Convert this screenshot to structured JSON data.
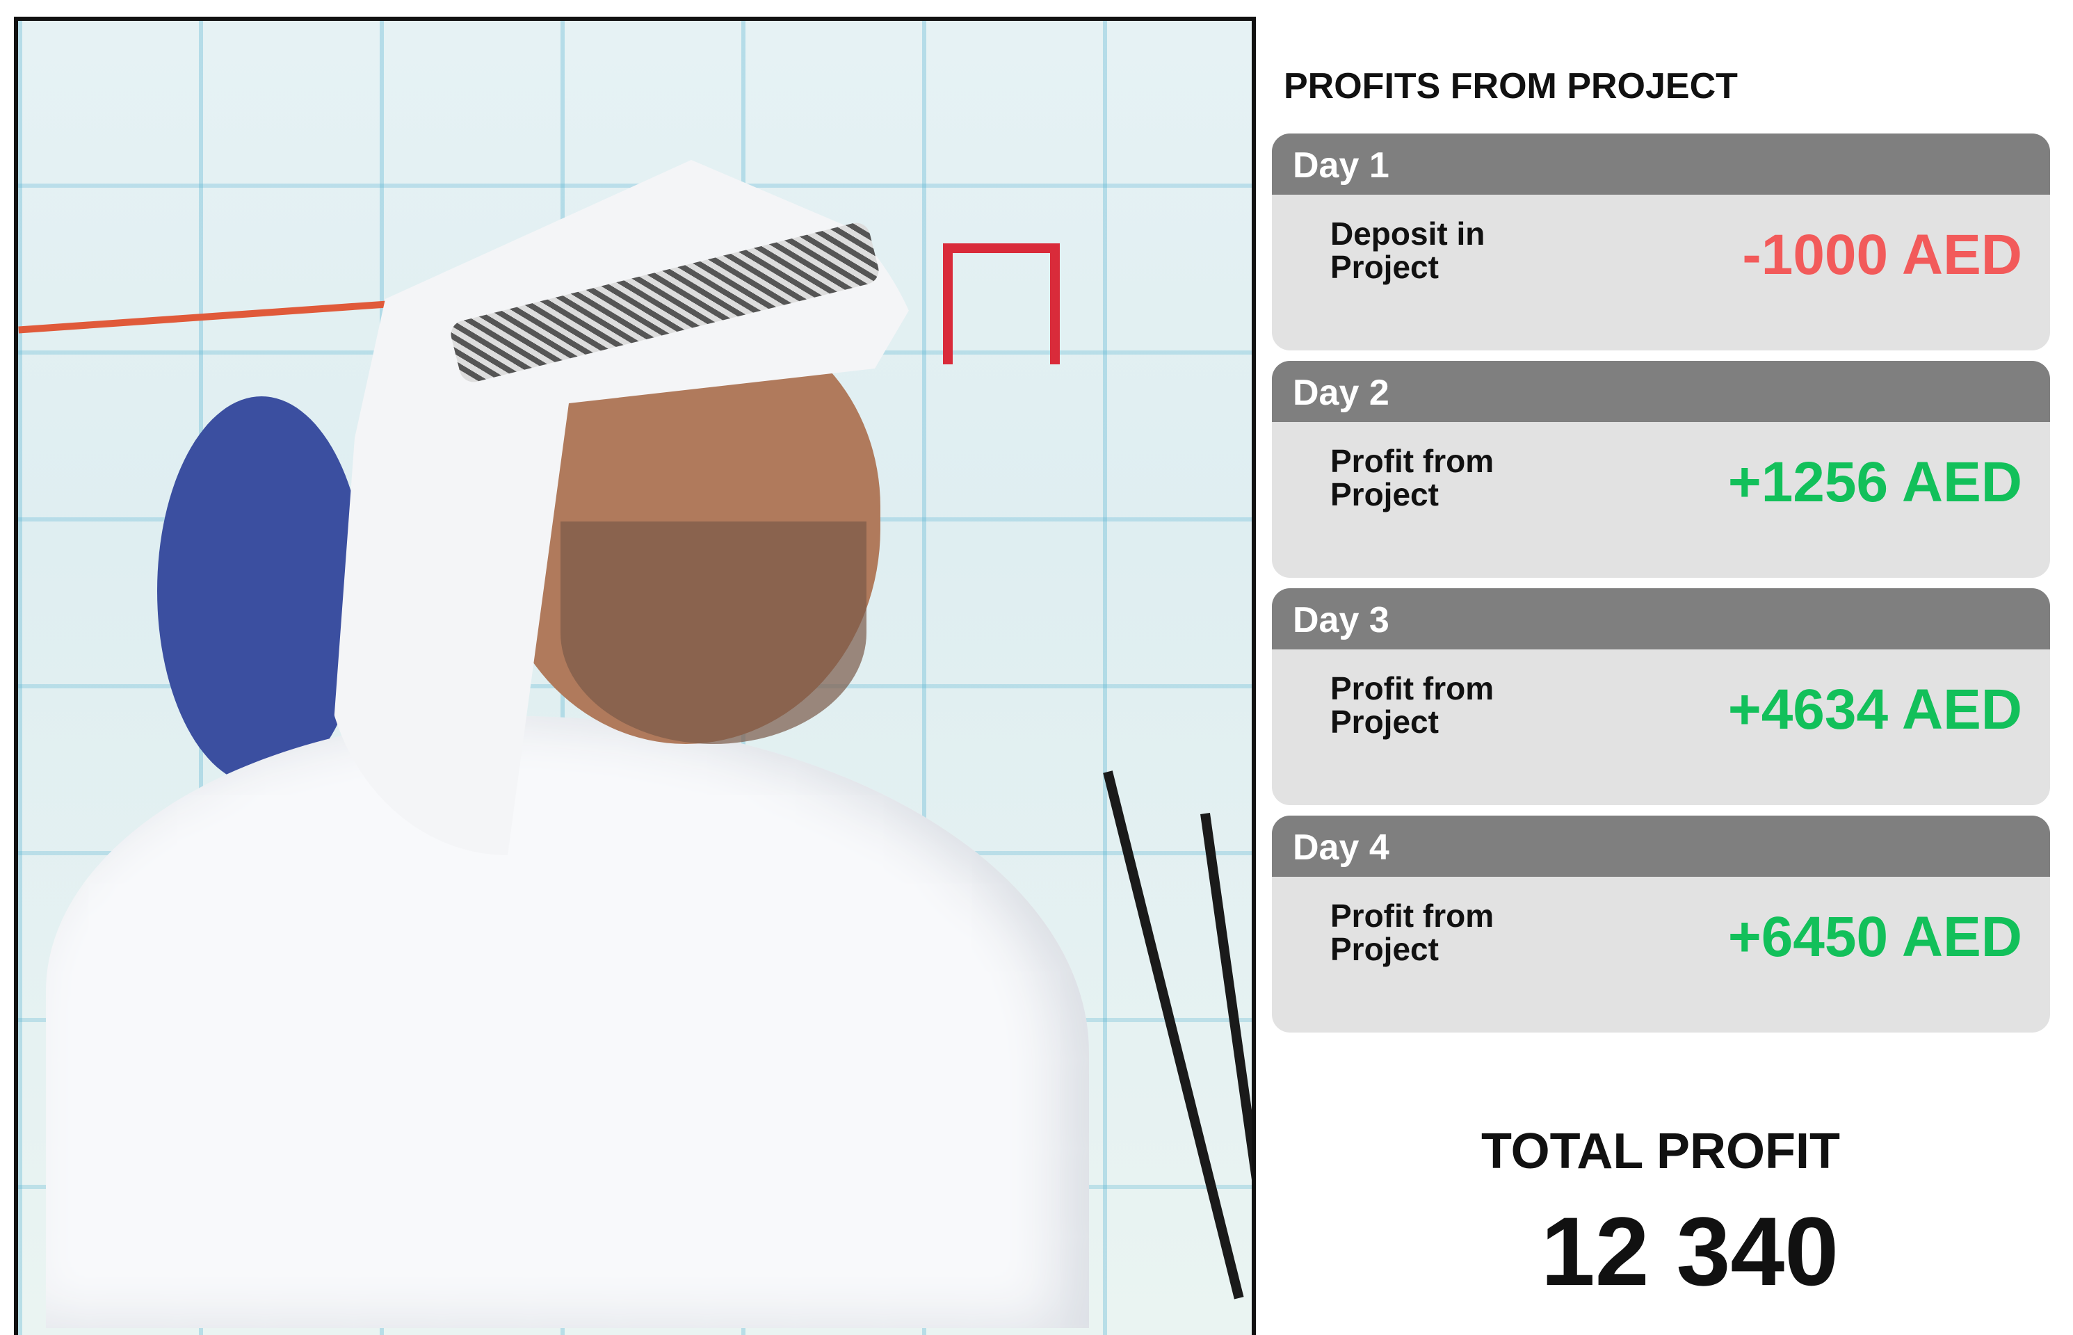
{
  "header": {
    "title": "PROFITS FROM PROJECT"
  },
  "days": [
    {
      "label": "Day 1",
      "description": "Deposit in Project",
      "amount": "-1000 AED",
      "type": "negative"
    },
    {
      "label": "Day 2",
      "description": "Profit from Project",
      "amount": "+1256 AED",
      "type": "positive"
    },
    {
      "label": "Day 3",
      "description": "Profit from Project",
      "amount": "+4634 AED",
      "type": "positive"
    },
    {
      "label": "Day 4",
      "description": "Profit from Project",
      "amount": "+6450 AED",
      "type": "positive"
    }
  ],
  "total": {
    "label": "TOTAL PROFIT",
    "value": "12 340"
  },
  "colors": {
    "negative": "#f25a5a",
    "positive": "#12c05a",
    "header_bar": "#7f7f7f",
    "card_bg": "#e2e2e2"
  }
}
